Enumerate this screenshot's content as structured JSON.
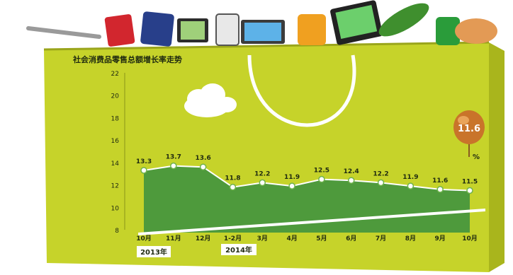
{
  "colors": {
    "bag": "#c6d32a",
    "bag_shade": "#a9b51c",
    "area": "#4e9a3c",
    "area_top": "#6fb34c",
    "line": "#ffffff",
    "text": "#1f2a10",
    "accent_badge": "#c9742a"
  },
  "header": {
    "title": "社会消费品零售总额增长率走势"
  },
  "badge": {
    "value": "11.6",
    "unit": "%"
  },
  "year_labels": [
    "2013年",
    "2014年"
  ],
  "chart_data": {
    "type": "area",
    "title": "社会消费品零售总额增长率走势",
    "xlabel": "",
    "ylabel": "",
    "categories": [
      "10月",
      "11月",
      "12月",
      "1-2月",
      "3月",
      "4月",
      "5月",
      "6月",
      "7月",
      "8月",
      "9月",
      "10月"
    ],
    "values": [
      13.3,
      13.7,
      13.6,
      11.8,
      12.2,
      11.9,
      12.5,
      12.4,
      12.2,
      11.9,
      11.6,
      11.5
    ],
    "value_labels": [
      "13.3",
      "13.7",
      "13.6",
      "11.8",
      "12.2",
      "11.9",
      "12.5",
      "12.4",
      "12.2",
      "11.9",
      "11.6",
      "11.5"
    ],
    "y_ticks": [
      8,
      10,
      12,
      14,
      16,
      18,
      20,
      22
    ],
    "ylim": [
      8,
      22
    ],
    "grid": false,
    "legend": "none"
  }
}
